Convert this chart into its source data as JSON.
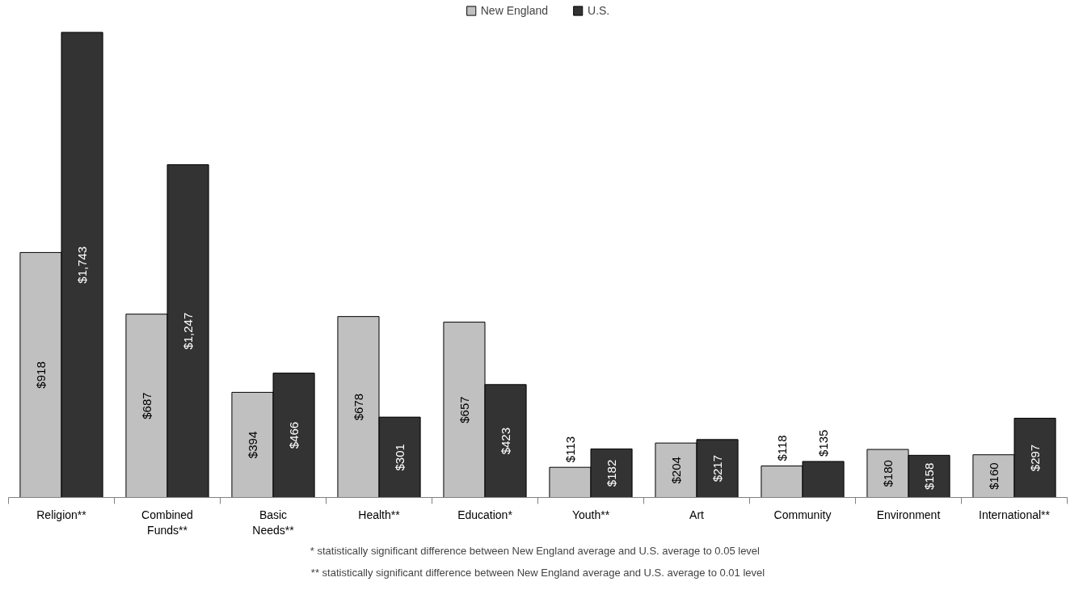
{
  "chart_data": {
    "type": "bar",
    "categories": [
      "Religion**",
      "Combined\nFunds**",
      "Basic\nNeeds**",
      "Health**",
      "Education*",
      "Youth**",
      "Art",
      "Community",
      "Environment",
      "International**"
    ],
    "series": [
      {
        "name": "New England",
        "color": "#c0c0c0",
        "values": [
          918,
          687,
          394,
          678,
          657,
          113,
          204,
          118,
          180,
          160
        ],
        "value_labels": [
          "$918",
          "$687",
          "$394",
          "$678",
          "$657",
          "$113",
          "$204",
          "$118",
          "$180",
          "$160"
        ]
      },
      {
        "name": "U.S.",
        "color": "#333333",
        "values": [
          1743,
          1247,
          466,
          301,
          423,
          182,
          217,
          135,
          158,
          297
        ],
        "value_labels": [
          "$1,743",
          "$1,247",
          "$466",
          "$301",
          "$423",
          "$182",
          "$217",
          "$135",
          "$158",
          "$297"
        ]
      }
    ],
    "legend": "top",
    "grid": false,
    "annotations": [
      "*   statistically significant difference between New England average and U.S. average to 0.05 level",
      "** statistically significant difference between New England average and U.S. average to 0.01 level"
    ]
  }
}
